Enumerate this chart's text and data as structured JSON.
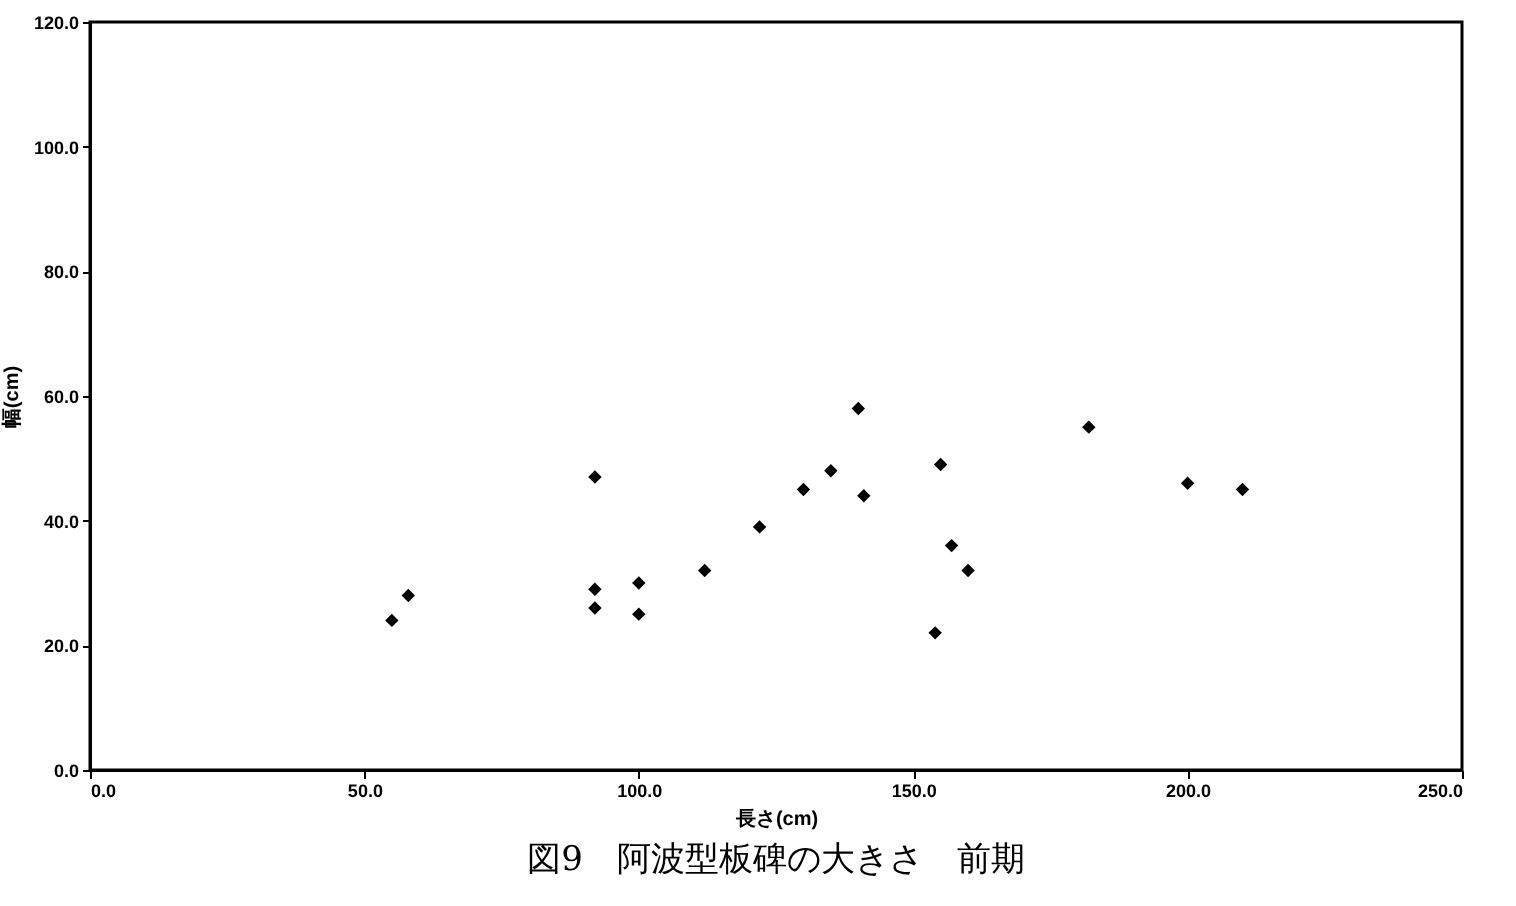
{
  "chart_data": {
    "type": "scatter",
    "title": "図9　阿波型板碑の大きさ　前期",
    "xlabel": "長さ(cm)",
    "ylabel": "幅(cm)",
    "x": [
      55,
      58,
      92,
      92,
      92,
      100,
      100,
      112,
      122,
      130,
      135,
      140,
      141,
      154,
      155,
      157,
      160,
      182,
      200,
      210
    ],
    "series": [
      {
        "color": "#000000",
        "values": [
          24,
          28,
          47,
          29,
          26,
          30,
          25,
          32,
          39,
          45,
          48,
          58,
          44,
          22,
          49,
          36,
          32,
          55,
          46,
          45
        ]
      }
    ],
    "xlim": [
      0,
      250
    ],
    "ylim": [
      0,
      120
    ],
    "xticks": [
      {
        "value": 0,
        "label": "0.0"
      },
      {
        "value": 50,
        "label": "50.0"
      },
      {
        "value": 100,
        "label": "100.0"
      },
      {
        "value": 150,
        "label": "150.0"
      },
      {
        "value": 200,
        "label": "200.0"
      },
      {
        "value": 250,
        "label": "250.0"
      }
    ],
    "yticks": [
      {
        "value": 0,
        "label": "0.0"
      },
      {
        "value": 20,
        "label": "20.0"
      },
      {
        "value": 40,
        "label": "40.0"
      },
      {
        "value": 60,
        "label": "60.0"
      },
      {
        "value": 80,
        "label": "80.0"
      },
      {
        "value": 100,
        "label": "100.0"
      },
      {
        "value": 120,
        "label": "120.0"
      }
    ],
    "marker": "diamond",
    "grid": false,
    "legend": false
  }
}
